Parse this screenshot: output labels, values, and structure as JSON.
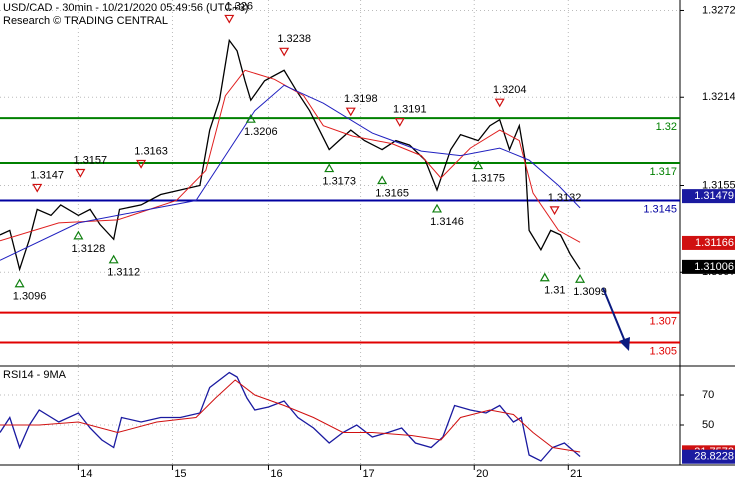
{
  "chart_data": [
    {
      "type": "line",
      "title": "USD/CAD - 30min - 10/21/2020 05:49:56 (UTC+3)",
      "subtitle": "Research © TRADING CENTRAL",
      "xlim": [
        0,
        347
      ],
      "ylim": [
        1.3035,
        1.3279
      ],
      "xticks": [
        {
          "value": 40,
          "label": "14"
        },
        {
          "value": 88,
          "label": "15"
        },
        {
          "value": 137,
          "label": "16"
        },
        {
          "value": 184,
          "label": "17"
        },
        {
          "value": 242,
          "label": "20"
        },
        {
          "value": 290,
          "label": "21"
        }
      ],
      "yticks": [
        1.3272,
        1.3214,
        1.3155,
        1.3097
      ],
      "grid": true,
      "series": [
        {
          "color": "#000000",
          "x": [
            0,
            5,
            10,
            15,
            19,
            26,
            31,
            40,
            46,
            51,
            58,
            61,
            72,
            82,
            92,
            102,
            107,
            112,
            117,
            121,
            125,
            128,
            135,
            145,
            151,
            158,
            163,
            168,
            173,
            179,
            186,
            195,
            202,
            209,
            217,
            223,
            230,
            235,
            244,
            250,
            255,
            260,
            265,
            268,
            270,
            276,
            281,
            286,
            291,
            296
          ],
          "values": [
            1.3122,
            1.3125,
            1.3099,
            1.3119,
            1.3139,
            1.3135,
            1.3142,
            1.3135,
            1.3139,
            1.3129,
            1.3119,
            1.3139,
            1.3142,
            1.3149,
            1.3152,
            1.3155,
            1.3192,
            1.3212,
            1.3252,
            1.3245,
            1.3225,
            1.3212,
            1.3225,
            1.3232,
            1.3219,
            1.3205,
            1.3192,
            1.3179,
            1.3185,
            1.3192,
            1.3185,
            1.3179,
            1.3185,
            1.3182,
            1.3172,
            1.3152,
            1.3179,
            1.3189,
            1.3185,
            1.3195,
            1.3199,
            1.3179,
            1.3195,
            1.3172,
            1.3125,
            1.3112,
            1.3125,
            1.3122,
            1.3109,
            1.3099
          ]
        },
        {
          "color": "#e02020",
          "x": [
            0,
            30,
            60,
            90,
            105,
            115,
            125,
            140,
            155,
            165,
            180,
            200,
            215,
            225,
            240,
            255,
            265,
            272,
            285,
            296
          ],
          "values": [
            1.3118,
            1.313,
            1.3132,
            1.3145,
            1.3165,
            1.3215,
            1.3232,
            1.3226,
            1.3215,
            1.3195,
            1.3188,
            1.3183,
            1.3175,
            1.316,
            1.318,
            1.3192,
            1.3185,
            1.315,
            1.3125,
            1.3117
          ]
        },
        {
          "color": "#2020c0",
          "x": [
            0,
            40,
            80,
            100,
            115,
            130,
            145,
            165,
            190,
            215,
            235,
            255,
            270,
            285,
            296
          ],
          "values": [
            1.3105,
            1.313,
            1.314,
            1.3145,
            1.3175,
            1.3205,
            1.3222,
            1.321,
            1.319,
            1.3178,
            1.3175,
            1.318,
            1.3172,
            1.3155,
            1.314
          ]
        }
      ],
      "levels": [
        {
          "value": 1.32,
          "color": "#008000"
        },
        {
          "value": 1.317,
          "color": "#008000"
        },
        {
          "value": 1.3145,
          "color": "#0000a0"
        },
        {
          "value": 1.307,
          "color": "#e00000"
        },
        {
          "value": 1.305,
          "color": "#e00000"
        }
      ],
      "price_tags": [
        {
          "value": 1.31479,
          "color": "#1a1aa0"
        },
        {
          "value": 1.31166,
          "color": "#d01010"
        },
        {
          "value": 1.31006,
          "color": "#000000"
        }
      ],
      "pivots": [
        {
          "x": 19,
          "value": 1.3147,
          "kind": "high"
        },
        {
          "x": 10,
          "value": 1.3096,
          "kind": "low"
        },
        {
          "x": 41,
          "value": 1.3157,
          "kind": "high"
        },
        {
          "x": 40,
          "value": 1.3128,
          "kind": "low"
        },
        {
          "x": 72,
          "value": 1.3163,
          "kind": "high"
        },
        {
          "x": 58,
          "value": 1.3112,
          "kind": "low"
        },
        {
          "x": 117,
          "value": 1.326,
          "kind": "high"
        },
        {
          "x": 145,
          "value": 1.3238,
          "kind": "high"
        },
        {
          "x": 128,
          "value": 1.3206,
          "kind": "low"
        },
        {
          "x": 179,
          "value": 1.3198,
          "kind": "high"
        },
        {
          "x": 168,
          "value": 1.3173,
          "kind": "low"
        },
        {
          "x": 204,
          "value": 1.3191,
          "kind": "high"
        },
        {
          "x": 195,
          "value": 1.3165,
          "kind": "low"
        },
        {
          "x": 223,
          "value": 1.3146,
          "kind": "low"
        },
        {
          "x": 255,
          "value": 1.3204,
          "kind": "high"
        },
        {
          "x": 244,
          "value": 1.3175,
          "kind": "low"
        },
        {
          "x": 283,
          "value": 1.3132,
          "kind": "high"
        },
        {
          "x": 278,
          "value": 1.31,
          "kind": "low"
        },
        {
          "x": 296,
          "value": 1.3099,
          "kind": "low"
        }
      ]
    },
    {
      "type": "line",
      "title": "RSI14 - 9MA",
      "xlim": [
        0,
        347
      ],
      "ylim": [
        23.3,
        88.7
      ],
      "yticks": [
        70,
        50
      ],
      "grid": true,
      "series": [
        {
          "color": "#1a1aa0",
          "x": [
            0,
            5,
            10,
            15,
            20,
            30,
            40,
            46,
            52,
            58,
            62,
            72,
            82,
            92,
            102,
            107,
            112,
            117,
            121,
            126,
            130,
            137,
            145,
            152,
            160,
            168,
            175,
            182,
            190,
            198,
            205,
            212,
            220,
            226,
            232,
            240,
            248,
            255,
            262,
            266,
            270,
            276,
            282,
            288,
            296
          ],
          "values": [
            45,
            55,
            35,
            50,
            60,
            52,
            58,
            48,
            40,
            35,
            55,
            52,
            55,
            55,
            58,
            75,
            80,
            85,
            82,
            68,
            60,
            62,
            66,
            55,
            48,
            38,
            45,
            50,
            42,
            45,
            48,
            38,
            35,
            42,
            63,
            60,
            58,
            63,
            52,
            55,
            30,
            26,
            35,
            38,
            29
          ]
        },
        {
          "color": "#d01010",
          "x": [
            0,
            20,
            40,
            60,
            80,
            100,
            110,
            120,
            130,
            145,
            160,
            175,
            190,
            210,
            225,
            235,
            250,
            262,
            272,
            282,
            296
          ],
          "values": [
            50,
            50,
            52,
            45,
            52,
            55,
            68,
            80,
            70,
            63,
            55,
            45,
            45,
            43,
            40,
            55,
            60,
            57,
            45,
            35,
            32
          ]
        }
      ],
      "price_tags": [
        {
          "value": 31.7573,
          "color": "#d01010"
        },
        {
          "value": 28.8228,
          "color": "#1a1aa0"
        }
      ]
    }
  ]
}
